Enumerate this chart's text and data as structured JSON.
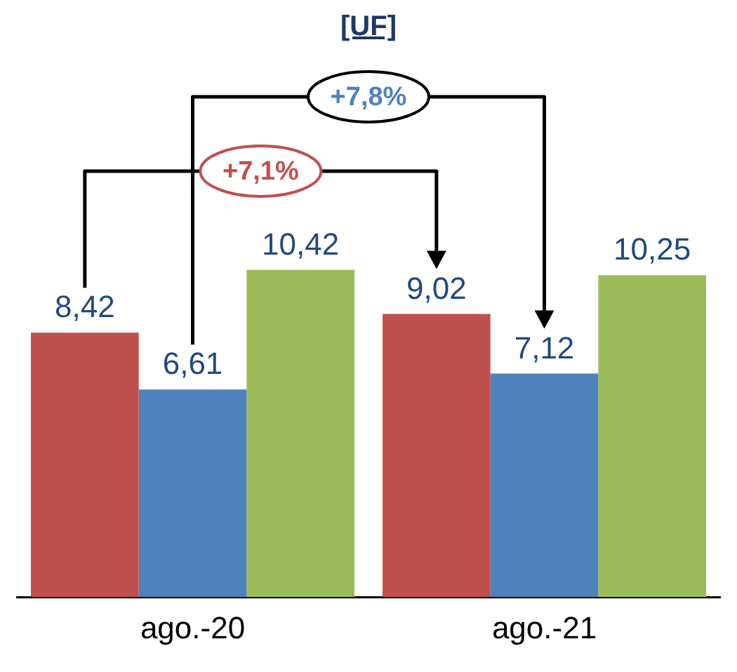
{
  "chart_data": {
    "type": "bar",
    "title": "[UF]",
    "categories": [
      "ago.-20",
      "ago.-21"
    ],
    "series": [
      {
        "color": "#c0504d",
        "values": [
          8.42,
          9.02
        ],
        "value_labels": [
          "8,42",
          "9,02"
        ]
      },
      {
        "color": "#4f81bd",
        "values": [
          6.61,
          7.12
        ],
        "value_labels": [
          "6,61",
          "7,12"
        ]
      },
      {
        "color": "#9bbb59",
        "values": [
          10.42,
          10.25
        ],
        "value_labels": [
          "10,42",
          "10,25"
        ]
      }
    ],
    "grid": false,
    "legend": false,
    "tick_labels": "x",
    "annotations": [
      "+7,1%",
      "+7,8%"
    ]
  }
}
